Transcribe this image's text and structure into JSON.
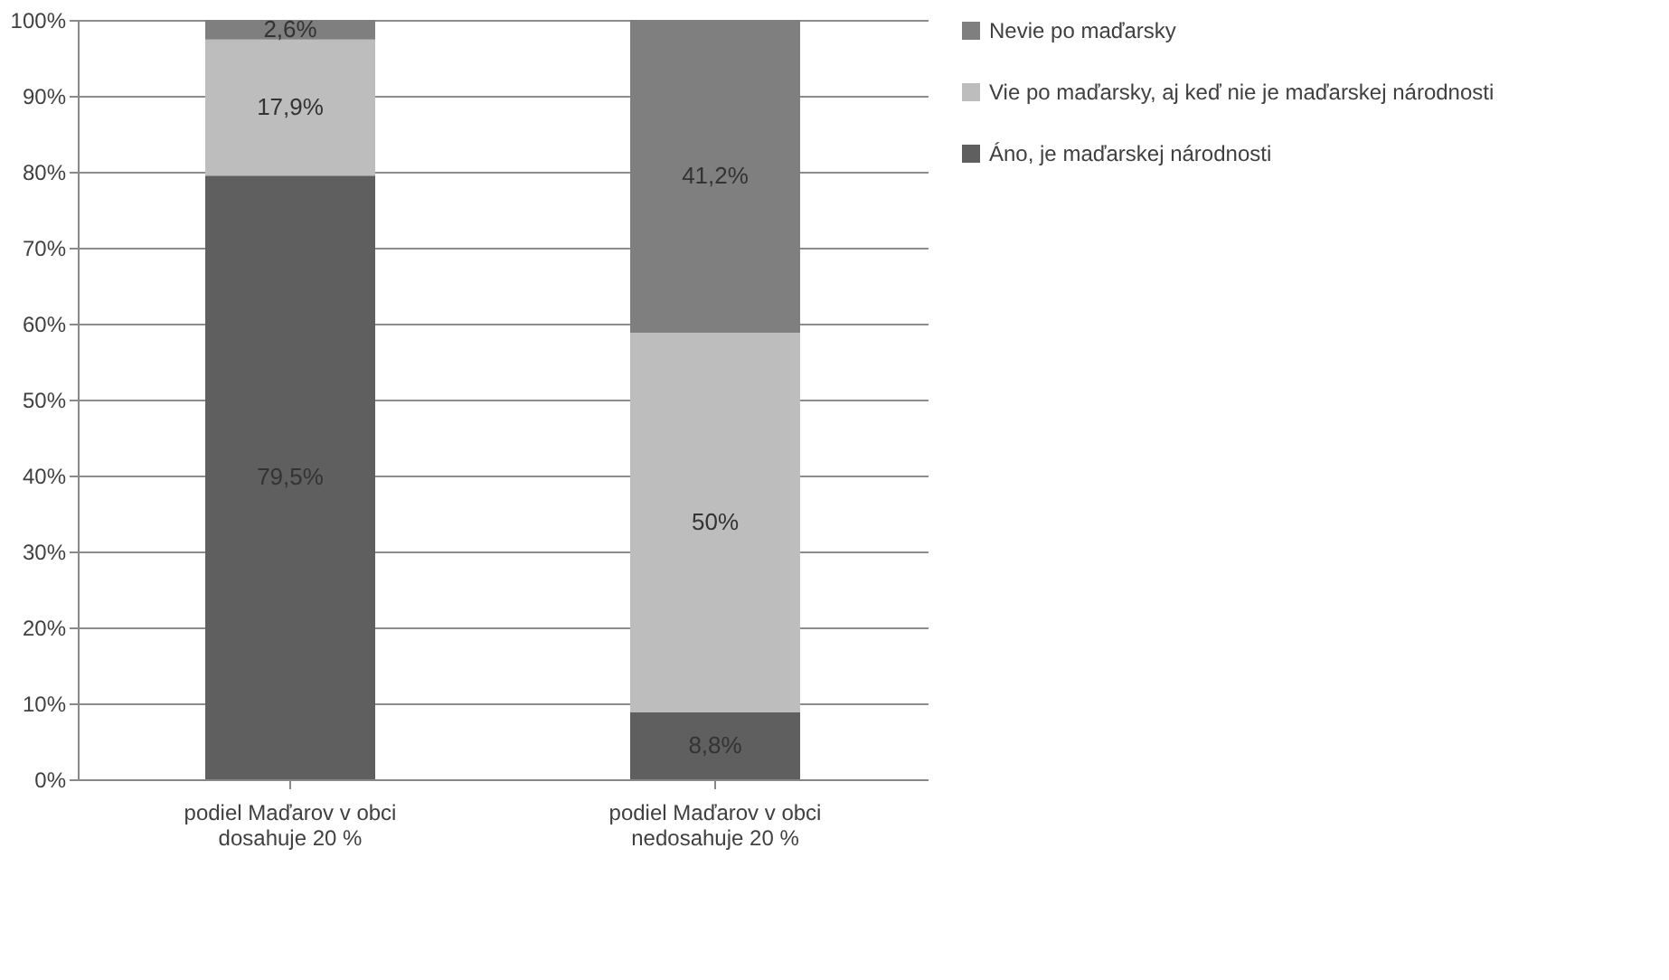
{
  "chart_data": {
    "type": "bar",
    "stacked": true,
    "categories": [
      "podiel Maďarov v obci\ndosahuje 20 %",
      "podiel Maďarov v obci\nnedosahuje 20 %"
    ],
    "series": [
      {
        "name": "Áno, je maďarskej národnosti",
        "color": "#5f5f5f",
        "values": [
          79.5,
          8.8
        ],
        "value_labels": [
          "79,5%",
          "8,8%"
        ]
      },
      {
        "name": "Vie po maďarsky, aj keď nie je maďarskej národnosti",
        "color": "#bdbdbd",
        "values": [
          17.9,
          50
        ],
        "value_labels": [
          "17,9%",
          "50%"
        ]
      },
      {
        "name": "Nevie po maďarsky",
        "color": "#7f7f7f",
        "values": [
          2.6,
          41.2
        ],
        "value_labels": [
          "2,6%",
          "41,2%"
        ]
      }
    ],
    "ylim": [
      0,
      100
    ],
    "yticks": [
      {
        "value": 0,
        "label": "0%"
      },
      {
        "value": 10,
        "label": "10%"
      },
      {
        "value": 20,
        "label": "20%"
      },
      {
        "value": 30,
        "label": "30%"
      },
      {
        "value": 40,
        "label": "40%"
      },
      {
        "value": 50,
        "label": "50%"
      },
      {
        "value": 60,
        "label": "60%"
      },
      {
        "value": 70,
        "label": "70%"
      },
      {
        "value": 80,
        "label": "80%"
      },
      {
        "value": 90,
        "label": "90%"
      },
      {
        "value": 100,
        "label": "100%"
      }
    ],
    "grid": "y",
    "legend": "right"
  }
}
